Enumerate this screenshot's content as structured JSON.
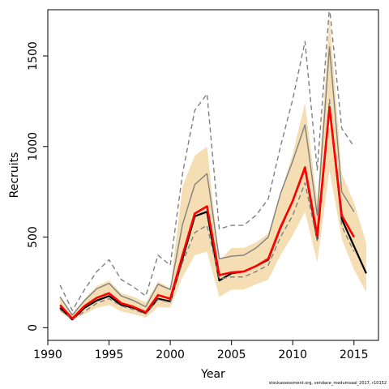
{
  "chart_data": {
    "type": "line",
    "xlabel": "Year",
    "ylabel": "Recruits",
    "xlim": [
      1990,
      2017
    ],
    "ylim": [
      -70,
      1755
    ],
    "x_ticks": [
      1990,
      1995,
      2000,
      2005,
      2010,
      2015
    ],
    "y_ticks": [
      0,
      500,
      1000,
      1500
    ],
    "band_color": "#f5deb3",
    "colors": {
      "band": "#f5deb3",
      "current": "#000000",
      "gray": "#808080",
      "red": "#ff0000"
    },
    "band": {
      "name": "",
      "x": [
        1991,
        1992,
        1993,
        1994,
        1995,
        1996,
        1997,
        1998,
        1999,
        2000,
        2001,
        2002,
        2003,
        2004,
        2005,
        2006,
        2007,
        2008,
        2009,
        2010,
        2011,
        2012,
        2013,
        2014,
        2015,
        2016
      ],
      "lower": [
        85,
        40,
        75,
        110,
        125,
        90,
        75,
        55,
        115,
        110,
        280,
        400,
        420,
        170,
        210,
        210,
        240,
        265,
        400,
        510,
        640,
        360,
        870,
        490,
        320,
        195
      ],
      "upper": [
        175,
        75,
        160,
        230,
        260,
        190,
        170,
        140,
        255,
        220,
        780,
        950,
        1000,
        370,
        440,
        440,
        470,
        520,
        740,
        960,
        1240,
        700,
        1720,
        850,
        690,
        470
      ]
    },
    "series": [
      {
        "name": "",
        "style": "solid",
        "color": "#000000",
        "x": [
          1991,
          1992,
          1993,
          1994,
          1995,
          1996,
          1997,
          1998,
          1999,
          2000,
          2001,
          2002,
          2003,
          2004,
          2005,
          2006,
          2007,
          2008,
          2009,
          2010,
          2011,
          2012,
          2013,
          2014,
          2015,
          2016
        ],
        "values": [
          110,
          45,
          110,
          150,
          175,
          125,
          110,
          80,
          160,
          145,
          380,
          615,
          640,
          260,
          300,
          310,
          340,
          375,
          550,
          700,
          880,
          490,
          1220,
          600,
          450,
          300
        ]
      },
      {
        "name": "",
        "style": "solid",
        "color": "#808080",
        "x": [
          1991,
          1992,
          1993,
          1994,
          1995,
          1996,
          1997,
          1998,
          1999,
          2000,
          2001,
          2002,
          2003,
          2004,
          2005,
          2006,
          2007,
          2008,
          2009,
          2010,
          2011,
          2012,
          2013,
          2014,
          2015
        ],
        "values": [
          170,
          70,
          150,
          215,
          245,
          175,
          150,
          115,
          240,
          210,
          570,
          790,
          850,
          380,
          395,
          400,
          440,
          500,
          740,
          920,
          1120,
          620,
          1550,
          750,
          640
        ]
      },
      {
        "name": "",
        "style": "dashed",
        "color": "#808080",
        "x": [
          1991,
          1992,
          1993,
          1994,
          1995,
          1996,
          1997,
          1998,
          1999,
          2000,
          2001,
          2002,
          2003,
          2004,
          2005,
          2006,
          2007,
          2008,
          2009,
          2010,
          2011,
          2012,
          2013,
          2014,
          2015
        ],
        "values": [
          235,
          95,
          210,
          310,
          375,
          265,
          225,
          175,
          400,
          345,
          850,
          1200,
          1290,
          545,
          565,
          565,
          620,
          710,
          1000,
          1260,
          1580,
          870,
          1770,
          1100,
          1000
        ]
      },
      {
        "name": "",
        "style": "dashed",
        "color": "#808080",
        "x": [
          1991,
          1992,
          1993,
          1994,
          1995,
          1996,
          1997,
          1998,
          1999,
          2000,
          2001,
          2002,
          2003,
          2004,
          2005,
          2006,
          2007,
          2008,
          2009,
          2010,
          2011,
          2012,
          2013,
          2014,
          2015
        ],
        "values": [
          100,
          45,
          90,
          135,
          160,
          120,
          100,
          75,
          155,
          140,
          360,
          525,
          565,
          270,
          280,
          280,
          310,
          345,
          500,
          620,
          800,
          480,
          1260,
          560,
          420
        ]
      },
      {
        "name": "",
        "style": "solid",
        "color": "#ff0000",
        "x": [
          1991,
          1992,
          1993,
          1994,
          1995,
          1996,
          1997,
          1998,
          1999,
          2000,
          2001,
          2002,
          2003,
          2004,
          2005,
          2006,
          2007,
          2008,
          2009,
          2010,
          2011,
          2012,
          2013,
          2014,
          2015
        ],
        "values": [
          125,
          50,
          120,
          165,
          190,
          135,
          115,
          85,
          180,
          160,
          400,
          630,
          670,
          290,
          305,
          310,
          340,
          380,
          555,
          700,
          885,
          510,
          1215,
          620,
          500
        ]
      }
    ]
  },
  "footnote": "stockassessment.org,  vendace_medumsaal_2017, r10152"
}
